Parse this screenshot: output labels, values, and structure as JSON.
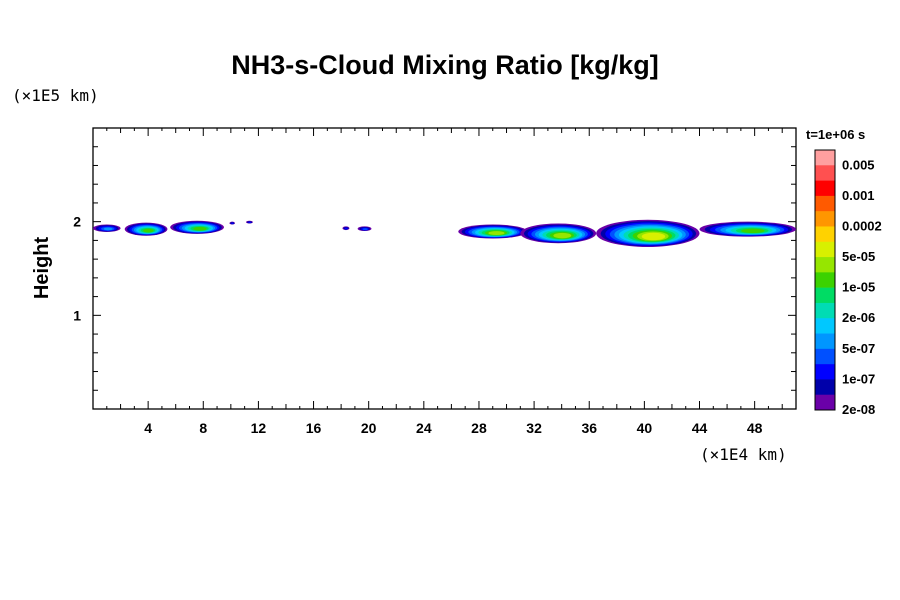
{
  "chart_data": {
    "type": "heatmap",
    "title": "NH3-s-Cloud Mixing Ratio [kg/kg]",
    "time_label": "t=1e+06 s",
    "xlabel": "",
    "x_unit": "(×1E4 km)",
    "ylabel": "Height",
    "y_unit": "(×1E5 km)",
    "xlim": [
      0,
      51
    ],
    "ylim": [
      0,
      3
    ],
    "x_ticks": [
      4,
      8,
      12,
      16,
      20,
      24,
      28,
      32,
      36,
      40,
      44,
      48
    ],
    "x_tick_labels": [
      "4",
      "8",
      "12",
      "16",
      "20",
      "24",
      "28",
      "32",
      "36",
      "40",
      "44",
      "48"
    ],
    "y_ticks": [
      1,
      2
    ],
    "y_tick_labels": [
      "1",
      "2"
    ],
    "colorbar": {
      "labels": [
        "0.005",
        "0.001",
        "0.0002",
        "5e-05",
        "1e-05",
        "2e-06",
        "5e-07",
        "1e-07",
        "2e-08"
      ],
      "colors": [
        "#ff9f9f",
        "#ff5050",
        "#ff0000",
        "#ff5a00",
        "#ff9600",
        "#ffd200",
        "#d8f000",
        "#96e600",
        "#3cd200",
        "#00dc64",
        "#00dcb4",
        "#00c8ff",
        "#0096ff",
        "#0050ff",
        "#0000ff",
        "#0000aa",
        "#6a00a8"
      ]
    },
    "cloud_regions": [
      {
        "x": [
          0,
          2
        ],
        "y": [
          1.89,
          1.97
        ],
        "level": 5
      },
      {
        "x": [
          2.3,
          5.4
        ],
        "y": [
          1.85,
          1.99
        ],
        "level": 9
      },
      {
        "x": [
          5.6,
          9.5
        ],
        "y": [
          1.87,
          2.01
        ],
        "level": 9
      },
      {
        "x": [
          9.9,
          10.3
        ],
        "y": [
          1.97,
          2.0
        ],
        "level": 3
      },
      {
        "x": [
          11.1,
          11.6
        ],
        "y": [
          1.98,
          2.01
        ],
        "level": 3
      },
      {
        "x": [
          18.1,
          18.6
        ],
        "y": [
          1.91,
          1.95
        ],
        "level": 3
      },
      {
        "x": [
          19.2,
          20.2
        ],
        "y": [
          1.9,
          1.95
        ],
        "level": 4
      },
      {
        "x": [
          26.5,
          31.5
        ],
        "y": [
          1.82,
          1.97
        ],
        "level": 10
      },
      {
        "x": [
          31.0,
          36.5
        ],
        "y": [
          1.77,
          1.98
        ],
        "level": 10
      },
      {
        "x": [
          36.5,
          44.0
        ],
        "y": [
          1.73,
          2.02
        ],
        "level": 11
      },
      {
        "x": [
          44.0,
          51.0
        ],
        "y": [
          1.84,
          2.0
        ],
        "level": 9
      }
    ]
  }
}
